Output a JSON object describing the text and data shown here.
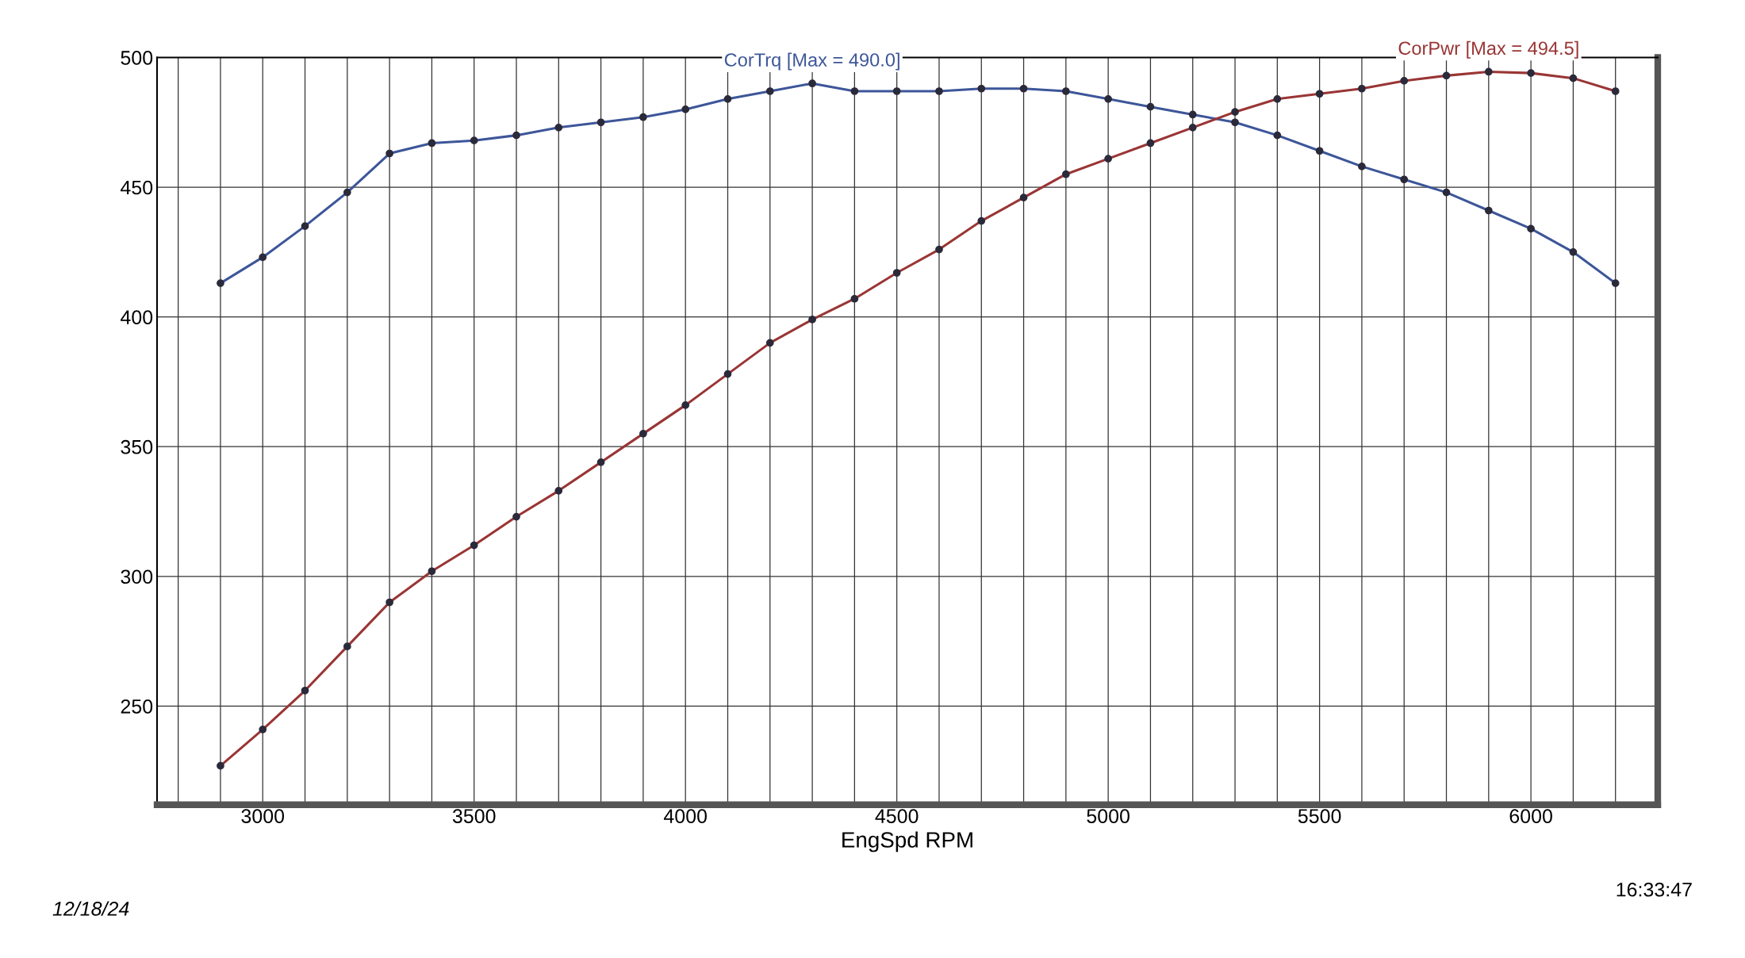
{
  "chart_data": {
    "type": "line",
    "xlabel": "EngSpd RPM",
    "x": [
      2900,
      3000,
      3100,
      3200,
      3300,
      3400,
      3500,
      3600,
      3700,
      3800,
      3900,
      4000,
      4100,
      4200,
      4300,
      4400,
      4500,
      4600,
      4700,
      4800,
      4900,
      5000,
      5100,
      5200,
      5300,
      5400,
      5500,
      5600,
      5700,
      5800,
      5900,
      6000,
      6100,
      6200
    ],
    "series": [
      {
        "name": "CorTrq [Max = 490.0]",
        "color": "#3d5699",
        "values": [
          413,
          423,
          435,
          448,
          463,
          467,
          468,
          470,
          473,
          475,
          477,
          480,
          484,
          487,
          490,
          487,
          487,
          487,
          488,
          488,
          487,
          484,
          481,
          478,
          475,
          470,
          464,
          458,
          453,
          448,
          441,
          434,
          425,
          413
        ]
      },
      {
        "name": "CorPwr [Max = 494.5]",
        "color": "#9a3535",
        "values": [
          227,
          241,
          256,
          273,
          290,
          302,
          312,
          323,
          333,
          344,
          355,
          366,
          378,
          390,
          399,
          407,
          417,
          426,
          437,
          446,
          455,
          461,
          467,
          473,
          479,
          484,
          486,
          488,
          491,
          493,
          494.5,
          494,
          492,
          487
        ]
      }
    ],
    "xlim": [
      2750,
      6300
    ],
    "ylim": [
      212,
      500
    ],
    "xticks": [
      {
        "value": 2800,
        "label": null
      },
      {
        "value": 2900,
        "label": null
      },
      3000,
      {
        "value": 3100,
        "label": null
      },
      {
        "value": 3200,
        "label": null
      },
      {
        "value": 3300,
        "label": null
      },
      {
        "value": 3400,
        "label": null
      },
      3500,
      {
        "value": 3600,
        "label": null
      },
      {
        "value": 3700,
        "label": null
      },
      {
        "value": 3800,
        "label": null
      },
      {
        "value": 3900,
        "label": null
      },
      4000,
      {
        "value": 4100,
        "label": null
      },
      {
        "value": 4200,
        "label": null
      },
      {
        "value": 4300,
        "label": null
      },
      {
        "value": 4400,
        "label": null
      },
      4500,
      {
        "value": 4600,
        "label": null
      },
      {
        "value": 4700,
        "label": null
      },
      {
        "value": 4800,
        "label": null
      },
      {
        "value": 4900,
        "label": null
      },
      5000,
      {
        "value": 5100,
        "label": null
      },
      {
        "value": 5200,
        "label": null
      },
      {
        "value": 5300,
        "label": null
      },
      {
        "value": 5400,
        "label": null
      },
      5500,
      {
        "value": 5600,
        "label": null
      },
      {
        "value": 5700,
        "label": null
      },
      {
        "value": 5800,
        "label": null
      },
      {
        "value": 5900,
        "label": null
      },
      6000,
      {
        "value": 6100,
        "label": null
      },
      {
        "value": 6200,
        "label": null
      }
    ],
    "yticks": [
      250,
      300,
      350,
      400,
      450,
      500
    ],
    "grid": true,
    "marker": "circle",
    "line_style": "solid",
    "legend": false,
    "annotations": [
      "12/18/24",
      "16:33:47"
    ]
  }
}
